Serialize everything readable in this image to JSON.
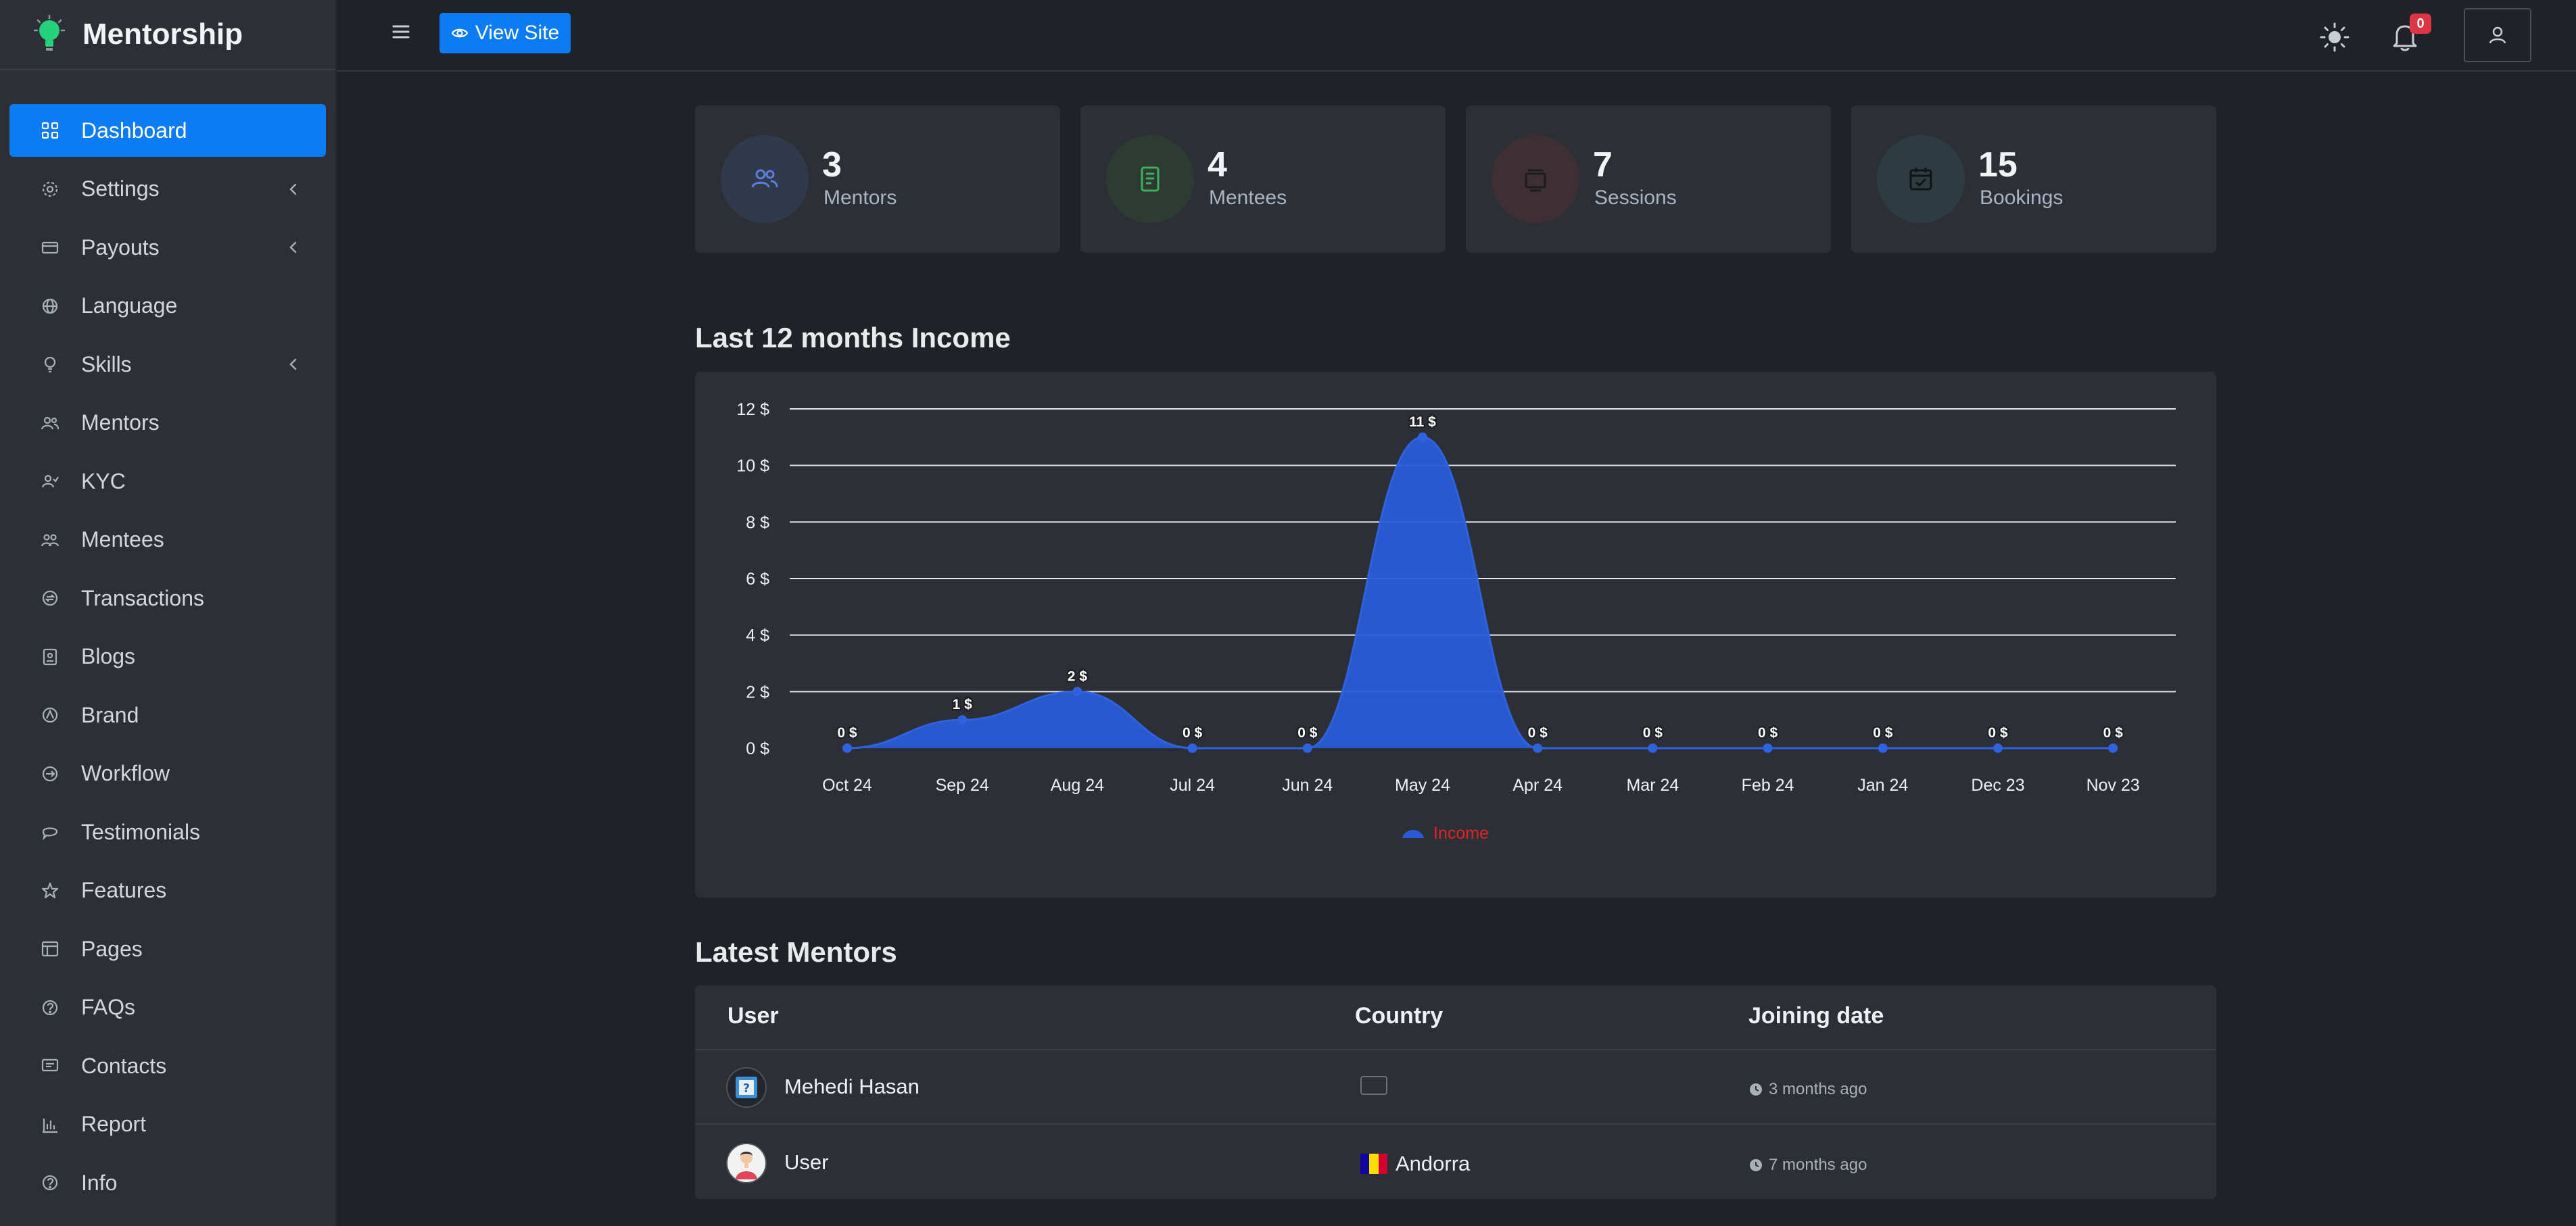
{
  "brand": {
    "name": "Mentorship"
  },
  "sidebar": {
    "items": [
      {
        "label": "Dashboard",
        "icon": "grid-icon",
        "active": true,
        "submenu": false
      },
      {
        "label": "Settings",
        "icon": "gear-icon",
        "active": false,
        "submenu": true
      },
      {
        "label": "Payouts",
        "icon": "wallet-icon",
        "active": false,
        "submenu": true
      },
      {
        "label": "Language",
        "icon": "globe-icon",
        "active": false,
        "submenu": false
      },
      {
        "label": "Skills",
        "icon": "lightbulb-icon",
        "active": false,
        "submenu": true
      },
      {
        "label": "Mentors",
        "icon": "users-icon",
        "active": false,
        "submenu": false
      },
      {
        "label": "KYC",
        "icon": "user-check-icon",
        "active": false,
        "submenu": false
      },
      {
        "label": "Mentees",
        "icon": "group-icon",
        "active": false,
        "submenu": false
      },
      {
        "label": "Transactions",
        "icon": "exchange-icon",
        "active": false,
        "submenu": false
      },
      {
        "label": "Blogs",
        "icon": "blog-icon",
        "active": false,
        "submenu": false
      },
      {
        "label": "Brand",
        "icon": "badge-icon",
        "active": false,
        "submenu": false
      },
      {
        "label": "Workflow",
        "icon": "arrow-circle-icon",
        "active": false,
        "submenu": false
      },
      {
        "label": "Testimonials",
        "icon": "chat-icon",
        "active": false,
        "submenu": false
      },
      {
        "label": "Features",
        "icon": "star-icon",
        "active": false,
        "submenu": false
      },
      {
        "label": "Pages",
        "icon": "table-icon",
        "active": false,
        "submenu": false
      },
      {
        "label": "FAQs",
        "icon": "question-icon",
        "active": false,
        "submenu": false
      },
      {
        "label": "Contacts",
        "icon": "message-icon",
        "active": false,
        "submenu": false
      },
      {
        "label": "Report",
        "icon": "bar-chart-icon",
        "active": false,
        "submenu": false
      },
      {
        "label": "Info",
        "icon": "info-icon",
        "active": false,
        "submenu": false
      }
    ]
  },
  "topbar": {
    "view_site_label": "View Site",
    "notification_count": "0"
  },
  "stats": [
    {
      "value": "3",
      "label": "Mentors",
      "icon": "users-icon",
      "color": "#5a7fd6",
      "bg": "#313a4d"
    },
    {
      "value": "4",
      "label": "Mentees",
      "icon": "notebook-icon",
      "color": "#3fae5d",
      "bg": "#2d3b33"
    },
    {
      "value": "7",
      "label": "Sessions",
      "icon": "layers-icon",
      "color": "#a84a4f",
      "bg": "#3d2f34"
    },
    {
      "value": "15",
      "label": "Bookings",
      "icon": "calendar-check-icon",
      "color": "#cfd6dd",
      "bg": "#2d3c40"
    }
  ],
  "income": {
    "title": "Last 12 months Income"
  },
  "chart_data": {
    "type": "area",
    "categories": [
      "Oct 24",
      "Sep 24",
      "Aug 24",
      "Jul 24",
      "Jun 24",
      "May 24",
      "Apr 24",
      "Mar 24",
      "Feb 24",
      "Jan 24",
      "Dec 23",
      "Nov 23"
    ],
    "series": [
      {
        "name": "Income",
        "values": [
          0,
          1,
          2,
          0,
          0,
          11,
          0,
          0,
          0,
          0,
          0,
          0
        ]
      }
    ],
    "data_labels": [
      "0 $",
      "1 $",
      "2 $",
      "0 $",
      "0 $",
      "11 $",
      "0 $",
      "0 $",
      "0 $",
      "0 $",
      "0 $",
      "0 $"
    ],
    "y_ticks": [
      "0 $",
      "2 $",
      "4 $",
      "6 $",
      "8 $",
      "10 $",
      "12 $"
    ],
    "ylim": [
      0,
      12
    ],
    "grid": true,
    "legend": "bottom-center",
    "colors": {
      "fill": "#2a5bd7",
      "line": "#2f62e0",
      "legend_text": "#e02424"
    }
  },
  "mentors": {
    "title": "Latest Mentors",
    "headers": [
      "User",
      "Country",
      "Joining date"
    ],
    "rows": [
      {
        "name": "Mehedi Hasan",
        "country": "",
        "joined": "3 months ago",
        "avatar": "placeholder-avatar"
      },
      {
        "name": "User",
        "country": "Andorra",
        "joined": "7 months ago",
        "avatar": "person-avatar"
      }
    ]
  }
}
